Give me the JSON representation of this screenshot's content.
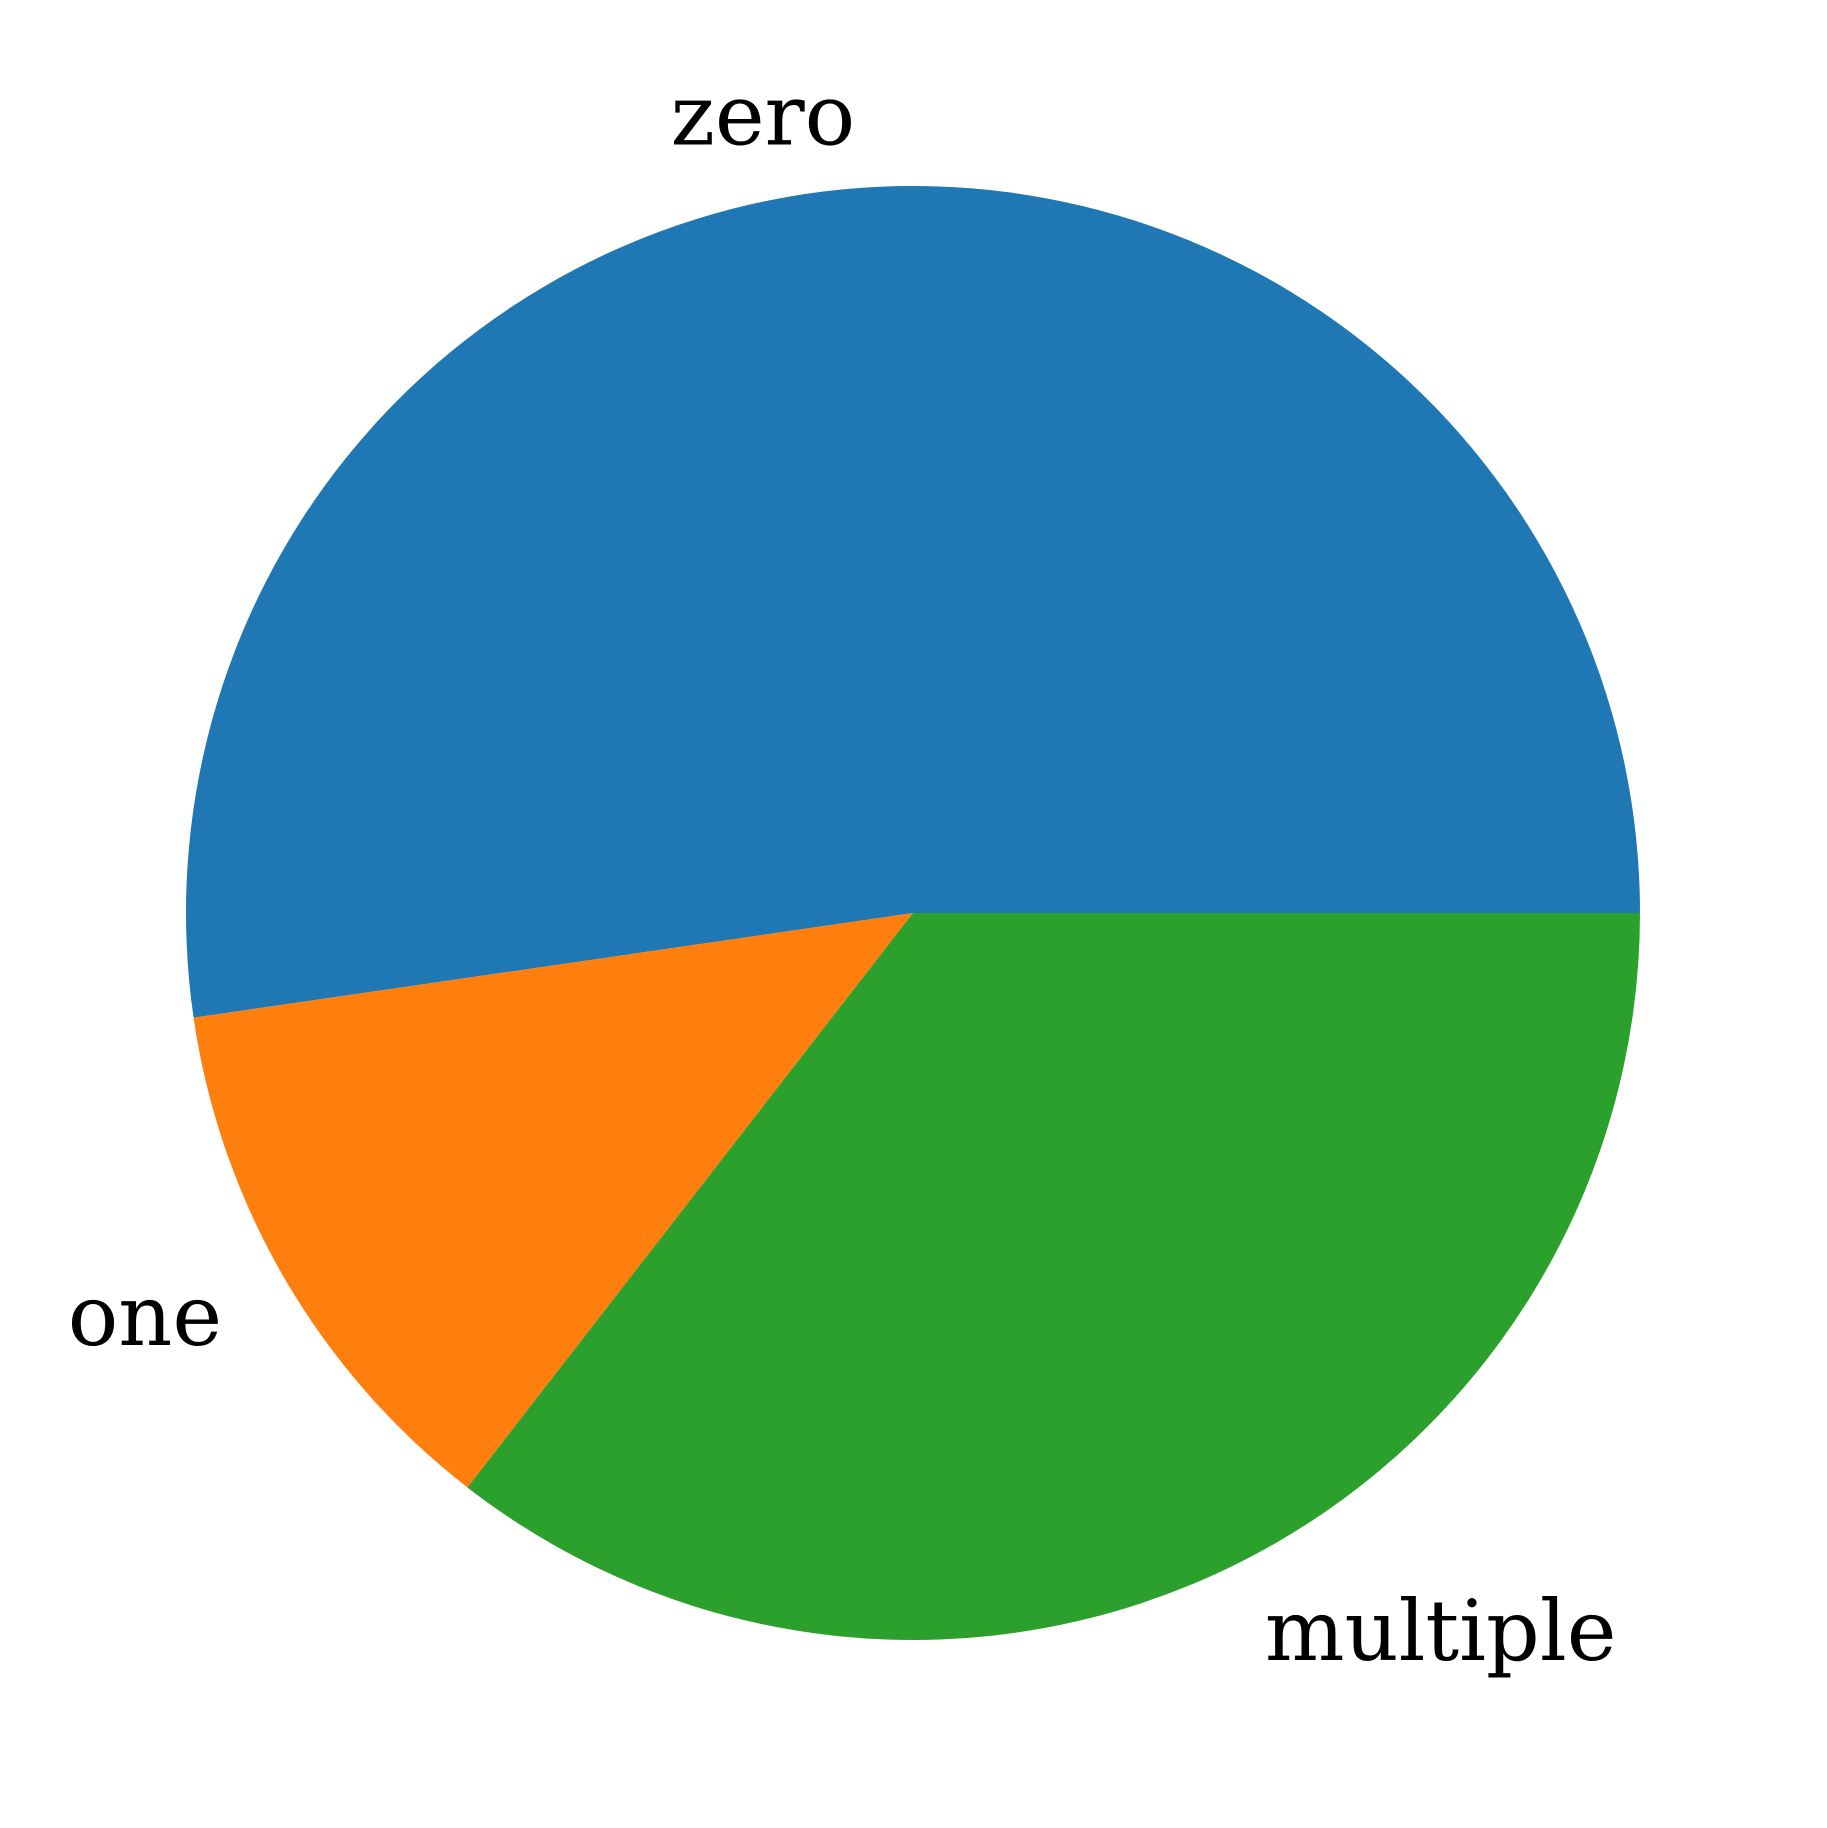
{
  "chart_data": {
    "type": "pie",
    "labels": [
      "zero",
      "one",
      "multiple"
    ],
    "values": [
      52.3,
      12.2,
      35.5
    ],
    "colors": [
      "#1f77b4",
      "#ff7f0e",
      "#2ca02c"
    ],
    "start_angle_deg": 0,
    "direction": "counterclockwise"
  }
}
